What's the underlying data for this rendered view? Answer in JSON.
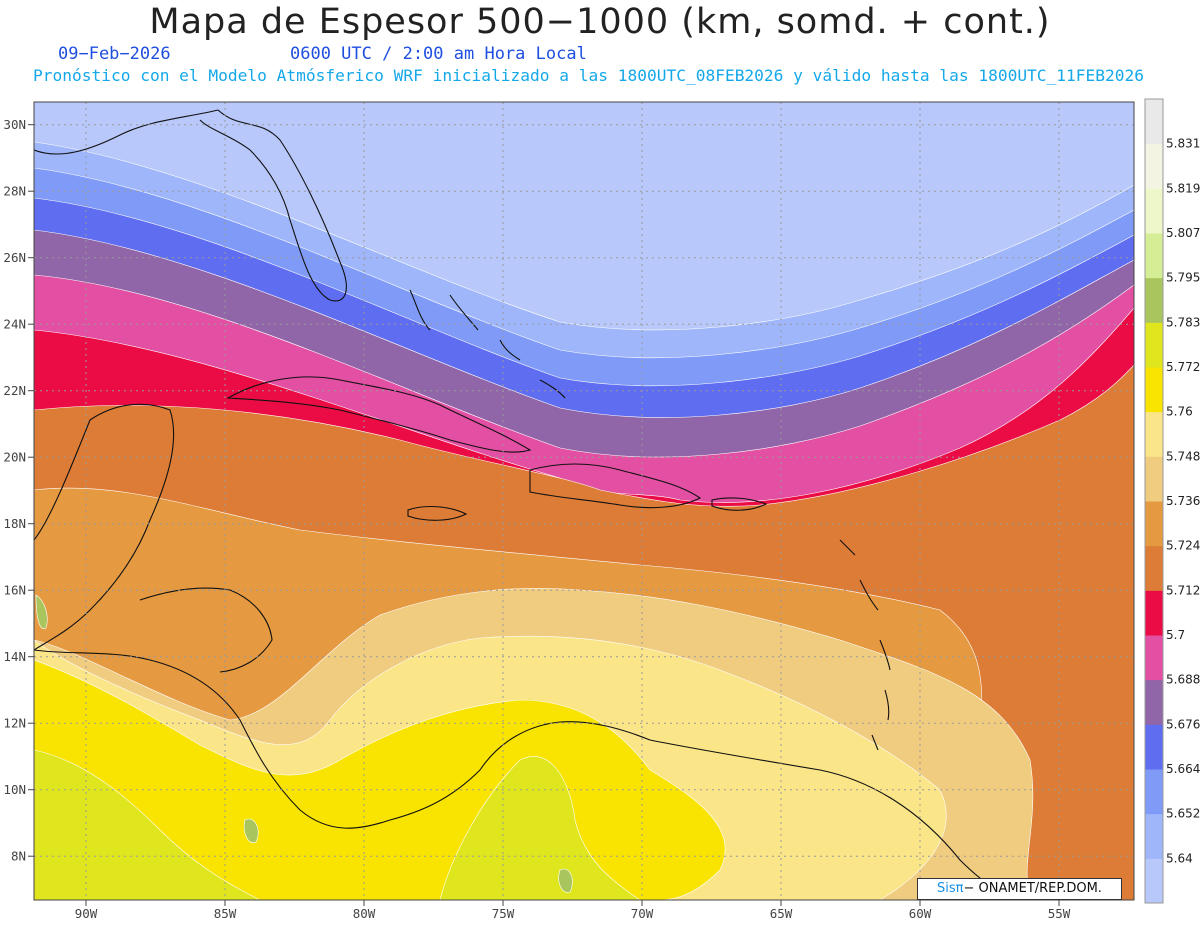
{
  "header": {
    "title": "Mapa de Espesor 500−1000 (km, somd. + cont.)",
    "date": "09−Feb−2026",
    "time": "0600 UTC / 2:00 am Hora Local",
    "model_info": "Pronóstico con el Modelo Atmósferico WRF inicializado a las 1800UTC_08FEB2026 y válido hasta las  1800UTC_11FEB2026"
  },
  "axes": {
    "lat_labels": [
      "30N",
      "28N",
      "26N",
      "24N",
      "22N",
      "20N",
      "18N",
      "16N",
      "14N",
      "12N",
      "10N",
      "8N"
    ],
    "lon_labels": [
      "90W",
      "85W",
      "80W",
      "75W",
      "70W",
      "65W",
      "60W",
      "55W"
    ]
  },
  "colorbar": {
    "labels": [
      "5.831",
      "5.819",
      "5.807",
      "5.795",
      "5.783",
      "5.772",
      "5.76",
      "5.748",
      "5.736",
      "5.724",
      "5.712",
      "5.7",
      "5.688",
      "5.676",
      "5.664",
      "5.652",
      "5.64"
    ],
    "colors": [
      "#b8c8fb",
      "#9fb6fa",
      "#7f9bf7",
      "#5f6df0",
      "#9166a8",
      "#e24fa3",
      "#ec0c45",
      "#dd7c36",
      "#e59a42",
      "#f0cc80",
      "#fae589",
      "#f8e400",
      "#dfe61e",
      "#a9c55e",
      "#d5ee95",
      "#eef7c9",
      "#f3f5e2",
      "#e9e9e9"
    ]
  },
  "credit": {
    "brand": "Sisπ",
    "text": "− ONAMET/REP.DOM."
  }
}
